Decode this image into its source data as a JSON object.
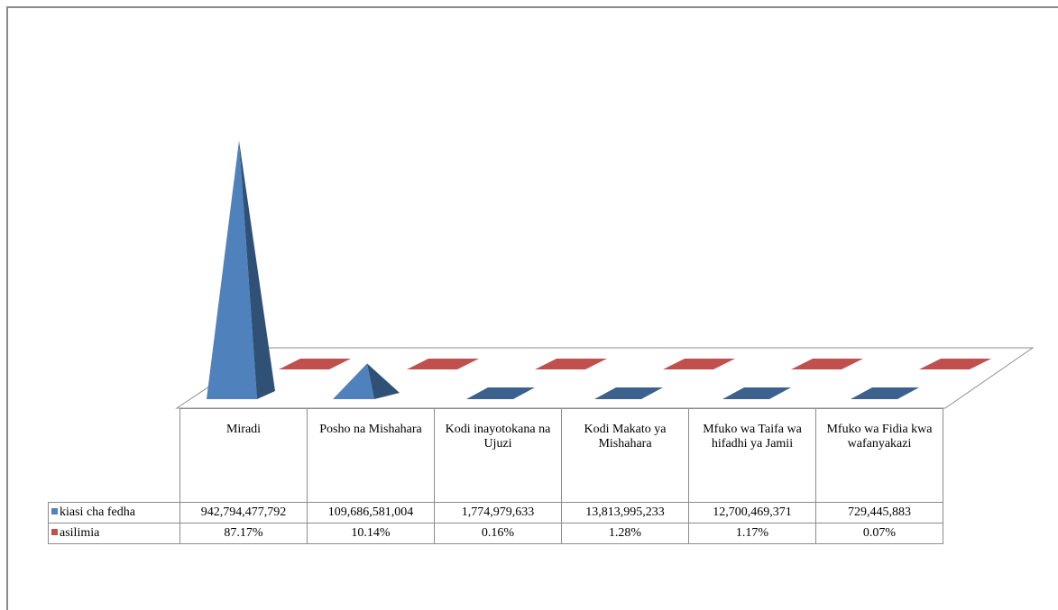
{
  "chart_data": {
    "type": "table",
    "categories": [
      "Miradi",
      "Posho na Mishahara",
      "Kodi inayotokana na Ujuzi",
      "Kodi Makato ya Mishahara",
      "Mfuko wa Taifa wa hifadhi ya Jamii",
      "Mfuko wa Fidia kwa wafanyakazi"
    ],
    "series": [
      {
        "name": "kiasi cha fedha",
        "color": "#4f81bd",
        "values": [
          942794477792,
          109686581004,
          1774979633,
          13813995233,
          12700469371,
          729445883
        ],
        "labels": [
          "942,794,477,792",
          "109,686,581,004",
          "1,774,979,633",
          "13,813,995,233",
          "12,700,469,371",
          "729,445,883"
        ]
      },
      {
        "name": "asilimia",
        "color": "#c0504d",
        "values": [
          87.17,
          10.14,
          0.16,
          1.28,
          1.17,
          0.07
        ],
        "labels": [
          "87.17%",
          "10.14%",
          "0.16%",
          "1.28%",
          "1.17%",
          "0.07%"
        ]
      }
    ],
    "chart_style": "3d-pyramid-with-data-table",
    "legend": "data-table-left",
    "grid": false
  }
}
